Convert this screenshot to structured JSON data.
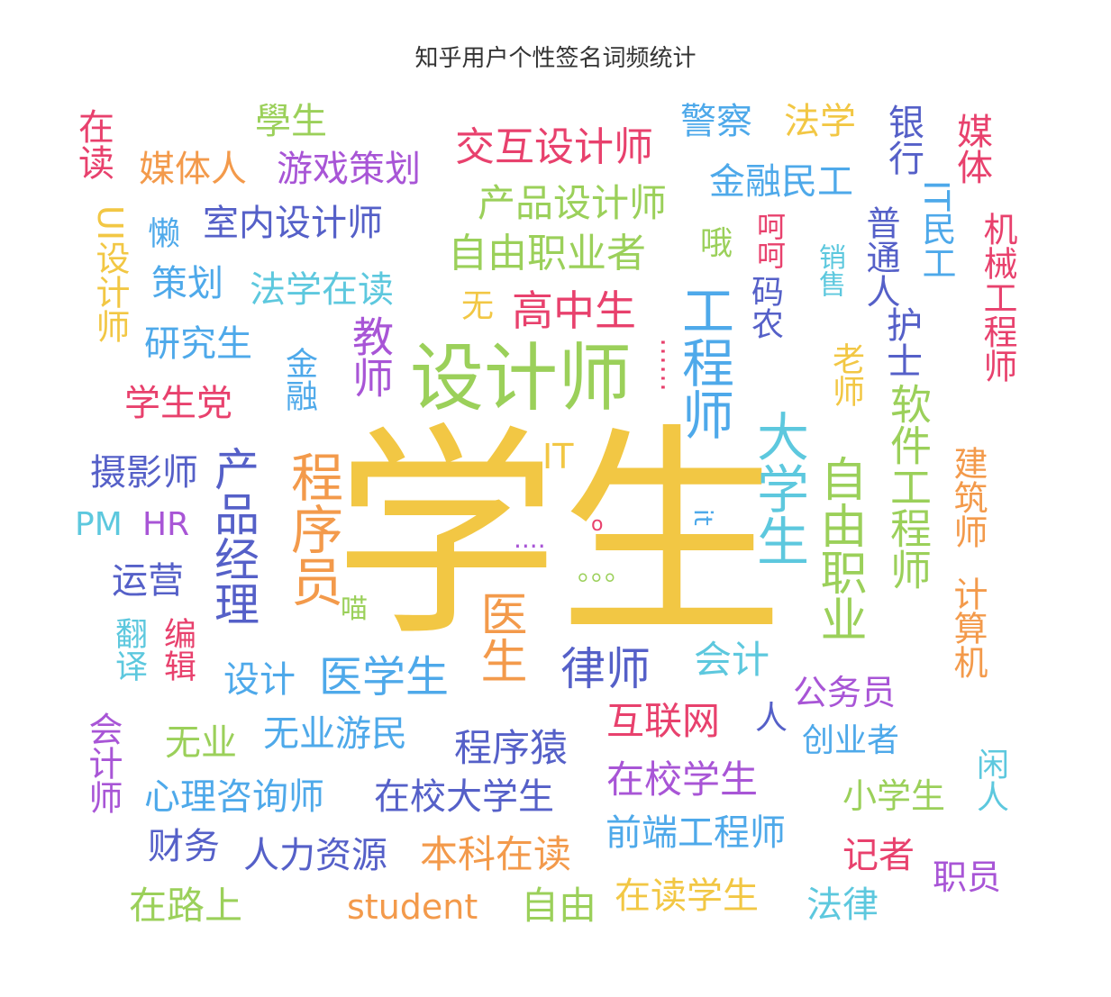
{
  "chart_data": {
    "type": "wordcloud",
    "title": "知乎用户个性签名词频统计",
    "words": [
      {
        "text": "学生",
        "color": "#f2c744"
      },
      {
        "text": "设计师",
        "color": "#9bd05a"
      },
      {
        "text": "工程师",
        "color": "#4ea9ea"
      },
      {
        "text": "大学生",
        "color": "#5dc8de"
      },
      {
        "text": "程序员",
        "color": "#f39a4b"
      },
      {
        "text": "产品经理",
        "color": "#5560c8"
      },
      {
        "text": "医生",
        "color": "#f39a4b"
      },
      {
        "text": "自由职业",
        "color": "#9bd05a"
      },
      {
        "text": "软件工程师",
        "color": "#9bd05a"
      },
      {
        "text": "教师",
        "color": "#a855d6"
      },
      {
        "text": "律师",
        "color": "#5560c8"
      },
      {
        "text": "医学生",
        "color": "#4ea9ea"
      },
      {
        "text": "交互设计师",
        "color": "#e8416d"
      },
      {
        "text": "产品设计师",
        "color": "#9bd05a"
      },
      {
        "text": "自由职业者",
        "color": "#9bd05a"
      },
      {
        "text": "高中生",
        "color": "#e8416d"
      },
      {
        "text": "媒体人",
        "color": "#f39a4b"
      },
      {
        "text": "游戏策划",
        "color": "#a855d6"
      },
      {
        "text": "學生",
        "color": "#9bd05a"
      },
      {
        "text": "在读",
        "color": "#e8416d"
      },
      {
        "text": "警察",
        "color": "#4ea9ea"
      },
      {
        "text": "法学",
        "color": "#f2c744"
      },
      {
        "text": "银行",
        "color": "#5560c8"
      },
      {
        "text": "媒体",
        "color": "#e8416d"
      },
      {
        "text": "金融民工",
        "color": "#4ea9ea"
      },
      {
        "text": "室内设计师",
        "color": "#5560c8"
      },
      {
        "text": "懒",
        "color": "#4ea9ea"
      },
      {
        "text": "UI设计师",
        "color": "#f2c744"
      },
      {
        "text": "策划",
        "color": "#4ea9ea"
      },
      {
        "text": "法学在读",
        "color": "#5dc8de"
      },
      {
        "text": "研究生",
        "color": "#4ea9ea"
      },
      {
        "text": "学生党",
        "color": "#e8416d"
      },
      {
        "text": "摄影师",
        "color": "#5560c8"
      },
      {
        "text": "PM",
        "color": "#5dc8de"
      },
      {
        "text": "HR",
        "color": "#a855d6"
      },
      {
        "text": "运营",
        "color": "#5560c8"
      },
      {
        "text": "翻译",
        "color": "#5dc8de"
      },
      {
        "text": "编辑",
        "color": "#e8416d"
      },
      {
        "text": "设计",
        "color": "#4ea9ea"
      },
      {
        "text": "会计师",
        "color": "#a855d6"
      },
      {
        "text": "无业",
        "color": "#9bd05a"
      },
      {
        "text": "无业游民",
        "color": "#4ea9ea"
      },
      {
        "text": "程序猿",
        "color": "#5560c8"
      },
      {
        "text": "心理咨询师",
        "color": "#4ea9ea"
      },
      {
        "text": "在校大学生",
        "color": "#5560c8"
      },
      {
        "text": "财务",
        "color": "#5560c8"
      },
      {
        "text": "人力资源",
        "color": "#5560c8"
      },
      {
        "text": "本科在读",
        "color": "#f39a4b"
      },
      {
        "text": "在路上",
        "color": "#9bd05a"
      },
      {
        "text": "student",
        "color": "#f39a4b"
      },
      {
        "text": "自由",
        "color": "#9bd05a"
      },
      {
        "text": "在读学生",
        "color": "#f2c744"
      },
      {
        "text": "法律",
        "color": "#5dc8de"
      },
      {
        "text": "前端工程师",
        "color": "#4ea9ea"
      },
      {
        "text": "记者",
        "color": "#e8416d"
      },
      {
        "text": "职员",
        "color": "#a855d6"
      },
      {
        "text": "在校学生",
        "color": "#a855d6"
      },
      {
        "text": "互联网",
        "color": "#e8416d"
      },
      {
        "text": "人",
        "color": "#5560c8"
      },
      {
        "text": "创业者",
        "color": "#4ea9ea"
      },
      {
        "text": "公务员",
        "color": "#a855d6"
      },
      {
        "text": "小学生",
        "color": "#9bd05a"
      },
      {
        "text": "会计",
        "color": "#5dc8de"
      },
      {
        "text": "闲人",
        "color": "#5dc8de"
      },
      {
        "text": "计算机",
        "color": "#f39a4b"
      },
      {
        "text": "建筑师",
        "color": "#f39a4b"
      },
      {
        "text": "机械工程师",
        "color": "#e8416d"
      },
      {
        "text": "IT民工",
        "color": "#4ea9ea"
      },
      {
        "text": "普通人",
        "color": "#5560c8"
      },
      {
        "text": "护士",
        "color": "#5560c8"
      },
      {
        "text": "销售",
        "color": "#5dc8de"
      },
      {
        "text": "老师",
        "color": "#f2c744"
      },
      {
        "text": "码农",
        "color": "#5560c8"
      },
      {
        "text": "呵呵",
        "color": "#e8416d"
      },
      {
        "text": "哦",
        "color": "#9bd05a"
      },
      {
        "text": "无",
        "color": "#f2c744"
      },
      {
        "text": "金融",
        "color": "#4ea9ea"
      },
      {
        "text": "IT",
        "color": "#f2c744"
      },
      {
        "text": "it",
        "color": "#4ea9ea"
      },
      {
        "text": "喵",
        "color": "#9bd05a"
      },
      {
        "text": "……",
        "color": "#e8416d"
      },
      {
        "text": "....",
        "color": "#a855d6"
      },
      {
        "text": "o",
        "color": "#e8416d"
      },
      {
        "text": "。。。",
        "color": "#9bd05a"
      }
    ]
  }
}
